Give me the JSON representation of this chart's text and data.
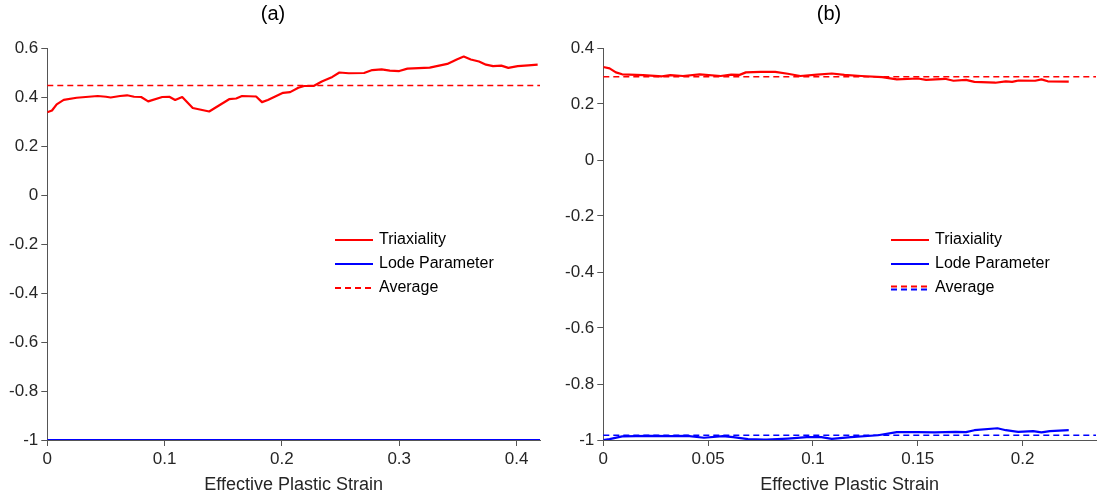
{
  "chart_data": [
    {
      "type": "line",
      "title": "(a)",
      "xlabel": "Effective Plastic Strain",
      "xlim": [
        0,
        0.42
      ],
      "xticks": [
        0,
        0.1,
        0.2,
        0.3,
        0.4
      ],
      "ylim": [
        -1,
        0.6
      ],
      "yticks": [
        -1,
        -0.8,
        -0.6,
        -0.4,
        -0.2,
        0,
        0.2,
        0.4,
        0.6
      ],
      "legend": "right",
      "marker": "none",
      "series": [
        {
          "name": "Triaxiality",
          "color": "#ff0000",
          "x": [
            0,
            0.004,
            0.008,
            0.014,
            0.025,
            0.043,
            0.05,
            0.054,
            0.062,
            0.068,
            0.074,
            0.08,
            0.086,
            0.098,
            0.104,
            0.109,
            0.115,
            0.124,
            0.138,
            0.155,
            0.161,
            0.166,
            0.178,
            0.183,
            0.188,
            0.201,
            0.207,
            0.214,
            0.219,
            0.227,
            0.234,
            0.243,
            0.249,
            0.257,
            0.27,
            0.277,
            0.285,
            0.292,
            0.3,
            0.307,
            0.326,
            0.341,
            0.349,
            0.355,
            0.361,
            0.368,
            0.374,
            0.38,
            0.387,
            0.393,
            0.401,
            0.41,
            0.418
          ],
          "values": [
            0.338,
            0.345,
            0.37,
            0.388,
            0.397,
            0.404,
            0.401,
            0.398,
            0.404,
            0.407,
            0.401,
            0.4,
            0.382,
            0.4,
            0.401,
            0.388,
            0.4,
            0.355,
            0.341,
            0.391,
            0.394,
            0.404,
            0.402,
            0.379,
            0.388,
            0.417,
            0.42,
            0.438,
            0.445,
            0.445,
            0.463,
            0.482,
            0.5,
            0.497,
            0.498,
            0.51,
            0.513,
            0.508,
            0.506,
            0.516,
            0.52,
            0.535,
            0.553,
            0.565,
            0.553,
            0.545,
            0.532,
            0.526,
            0.528,
            0.519,
            0.526,
            0.529,
            0.532
          ]
        },
        {
          "name": "Lode Parameter",
          "color": "#0000ff",
          "x": [
            0,
            0.1,
            0.2,
            0.3,
            0.42
          ],
          "values": [
            -1,
            -1,
            -1,
            -1,
            -1
          ]
        }
      ],
      "ref_lines": [
        {
          "axis": "y",
          "value": 0.447,
          "label": "Average",
          "color": "#ff0000",
          "line_style": "dashed"
        }
      ]
    },
    {
      "type": "line",
      "title": "(b)",
      "xlabel": "Effective Plastic Strain",
      "xlim": [
        0,
        0.235
      ],
      "xticks": [
        0,
        0.05,
        0.1,
        0.15,
        0.2
      ],
      "ylim": [
        -1,
        0.4
      ],
      "yticks": [
        -1,
        -0.8,
        -0.6,
        -0.4,
        -0.2,
        0,
        0.2,
        0.4
      ],
      "legend": "right",
      "marker": "none",
      "series": [
        {
          "name": "Triaxiality",
          "color": "#ff0000",
          "x": [
            0,
            0.003,
            0.006,
            0.009,
            0.019,
            0.028,
            0.032,
            0.038,
            0.046,
            0.056,
            0.061,
            0.065,
            0.068,
            0.075,
            0.082,
            0.088,
            0.094,
            0.102,
            0.109,
            0.115,
            0.123,
            0.133,
            0.14,
            0.15,
            0.154,
            0.163,
            0.167,
            0.173,
            0.177,
            0.187,
            0.192,
            0.195,
            0.198,
            0.206,
            0.209,
            0.212,
            0.222
          ],
          "values": [
            0.332,
            0.327,
            0.313,
            0.306,
            0.303,
            0.299,
            0.303,
            0.3,
            0.306,
            0.3,
            0.305,
            0.304,
            0.313,
            0.315,
            0.315,
            0.308,
            0.3,
            0.305,
            0.309,
            0.304,
            0.3,
            0.296,
            0.288,
            0.291,
            0.286,
            0.29,
            0.283,
            0.286,
            0.279,
            0.276,
            0.281,
            0.279,
            0.284,
            0.283,
            0.288,
            0.281,
            0.28
          ]
        },
        {
          "name": "Lode Parameter",
          "color": "#0000ff",
          "x": [
            0,
            0.003,
            0.009,
            0.022,
            0.032,
            0.04,
            0.048,
            0.057,
            0.062,
            0.069,
            0.078,
            0.088,
            0.097,
            0.104,
            0.109,
            0.118,
            0.131,
            0.14,
            0.15,
            0.158,
            0.168,
            0.173,
            0.177,
            0.188,
            0.192,
            0.198,
            0.205,
            0.209,
            0.213,
            0.222
          ],
          "values": [
            -1,
            -0.997,
            -0.987,
            -0.985,
            -0.986,
            -0.985,
            -0.992,
            -0.986,
            -0.99,
            -0.997,
            -0.999,
            -0.995,
            -0.99,
            -0.99,
            -0.996,
            -0.99,
            -0.983,
            -0.972,
            -0.972,
            -0.973,
            -0.971,
            -0.972,
            -0.965,
            -0.958,
            -0.965,
            -0.971,
            -0.968,
            -0.973,
            -0.968,
            -0.965
          ]
        }
      ],
      "ref_lines": [
        {
          "axis": "y",
          "value": 0.297,
          "label": "Average",
          "color": "#ff0000",
          "line_style": "dashed"
        },
        {
          "axis": "y",
          "value": -0.983,
          "color": "#0000ff",
          "line_style": "dashed"
        }
      ]
    }
  ]
}
